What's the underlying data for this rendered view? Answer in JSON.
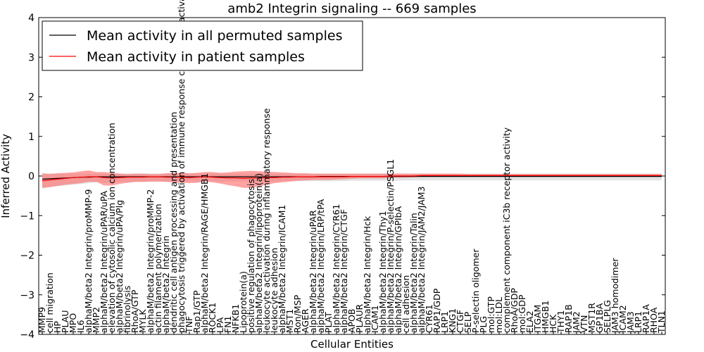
{
  "chart_data": {
    "type": "line",
    "title": "amb2 Integrin signaling -- 669 samples",
    "xlabel": "Cellular Entities",
    "ylabel": "Inferred Activity",
    "ylim": [
      -4,
      4
    ],
    "yticks": [
      -4,
      -3,
      -2,
      -1,
      0,
      1,
      2,
      3,
      4
    ],
    "ytick_labels": [
      "−4",
      "−3",
      "−2",
      "−1",
      "0",
      "1",
      "2",
      "3",
      "4"
    ],
    "grid": false,
    "legend_position": "top-left",
    "categories": [
      "MMP9",
      "cell migration",
      "HP",
      "PLAU",
      "MPO",
      "IL6",
      "alphaM/beta2 Integrin/proMMP-9",
      "MMP2",
      "alphaM/beta2 Integrin/uPAR/uPA",
      "elevation of cytosolic calcium ion concentration",
      "alphaM/beta2 Integrin/uPA/Plg",
      "fibrinolysis",
      "RhoA/GTP",
      "MYLK",
      "alphaM/beta2 Integrin/proMMP-2",
      "actin filament polymerization",
      "alphaM/beta2 Integrin",
      "dendritic cell antigen processing and presentation",
      "phagocytosis triggered by activation of immune response cell surface activating receptor",
      "TNF",
      "Rap1/GTP",
      "alphaM/beta2 Integrin/RAGE/HMGB1",
      "ROCK1",
      "LPA",
      "FN1",
      "NFKB1",
      "Lipoprotein(a)",
      "positive regulation of phagocytosis",
      "alphaM/beta2 Integrin/lipoprotein(a)",
      "leukocyte activation during inflammatory response",
      "leukocyte adhesion",
      "alphaM/beta2 Integrin/ICAM1",
      "MST1",
      "Ron/MSP",
      "AGER",
      "alphaM/beta2 Integrin/uPAR",
      "alphaM/beta2 Integrin/LRP/tPA",
      "PLAT",
      "alphaM/beta2 Integrin/CYR61",
      "alphaM/beta2 Integrin/CTGF",
      "APOB",
      "PLAUR",
      "alphaM/beta2 Integrin/Hck",
      "ICAM1",
      "alphaM/beta2 Integrin/Thy1",
      "alphaM/beta2 Integrin/P-selectin/PSGL1",
      "alphaM/beta2 Integrin/GPIbA",
      "cell adhesion",
      "alphaM/beta2 Integrin/Talin",
      "alphaM/beta2 Integrin/JAM2/JAM3",
      "CYR61",
      "RAP1/GDP",
      "LRP1",
      "KNG1",
      "CTGF",
      "SELP",
      "P-selectin oligomer",
      "PLG",
      "mol:GTP",
      "mol:LDL",
      "complement component iC3b receptor activity",
      "RhoA/GDP",
      "mol:GDP",
      "ELA2",
      "ITGAM",
      "HMGB1",
      "HCK",
      "THY1",
      "RAP1B",
      "JAM2",
      "VTN",
      "MST1R",
      "GP1BA",
      "SELPLG",
      "JAM3 homodimer",
      "ICAM2",
      "JAM3",
      "LRP1",
      "RAP1A",
      "RHOA",
      "TLN1"
    ],
    "series": [
      {
        "name": "Mean activity in all permuted samples",
        "color": "#000000",
        "values": [
          -0.08,
          -0.07,
          -0.06,
          -0.05,
          -0.04,
          -0.03,
          -0.03,
          -0.02,
          -0.02,
          -0.02,
          -0.02,
          -0.02,
          -0.02,
          -0.02,
          -0.02,
          -0.02,
          -0.02,
          -0.02,
          -0.02,
          -0.02,
          -0.02,
          -0.02,
          -0.02,
          -0.02,
          -0.02,
          -0.02,
          -0.02,
          -0.02,
          -0.02,
          -0.02,
          -0.02,
          -0.02,
          -0.02,
          -0.02,
          -0.02,
          -0.02,
          -0.01,
          -0.01,
          -0.01,
          -0.01,
          -0.01,
          -0.01,
          -0.01,
          -0.01,
          -0.01,
          -0.01,
          -0.01,
          -0.01,
          -0.01,
          -0.01,
          -0.01,
          -0.01,
          -0.01,
          -0.01,
          -0.01,
          -0.01,
          -0.01,
          -0.01,
          -0.01,
          -0.01,
          -0.01,
          -0.01,
          -0.01,
          -0.01,
          -0.01,
          -0.01,
          -0.01,
          -0.01,
          -0.01,
          -0.01,
          -0.01,
          -0.01,
          -0.01,
          -0.01,
          -0.01,
          -0.01,
          -0.01,
          -0.01,
          -0.01,
          -0.01,
          -0.01
        ],
        "lower": [
          -0.32,
          -0.28,
          -0.25,
          -0.24,
          -0.22,
          -0.2,
          -0.18,
          -0.16,
          -0.16,
          -0.16,
          -0.15,
          -0.15,
          -0.15,
          -0.15,
          -0.14,
          -0.14,
          -0.14,
          -0.14,
          -0.14,
          -0.14,
          -0.14,
          -0.14,
          -0.14,
          -0.14,
          -0.14,
          -0.14,
          -0.14,
          -0.14,
          -0.14,
          -0.14,
          -0.14,
          -0.13,
          -0.13,
          -0.13,
          -0.13,
          -0.13,
          -0.13,
          -0.13,
          -0.13,
          -0.13,
          -0.12,
          -0.12,
          -0.12,
          -0.12,
          -0.12,
          -0.12,
          -0.12,
          -0.11,
          -0.11,
          -0.11,
          -0.11,
          -0.11,
          -0.11,
          -0.11,
          -0.11,
          -0.11,
          -0.11,
          -0.11,
          -0.11,
          -0.11,
          -0.11,
          -0.11,
          -0.11,
          -0.11,
          -0.11,
          -0.11,
          -0.11,
          -0.11,
          -0.11,
          -0.11,
          -0.11,
          -0.11,
          -0.11,
          -0.11,
          -0.11,
          -0.11,
          -0.11,
          -0.11,
          -0.11,
          -0.11,
          -0.11
        ],
        "upper": [
          0.08,
          0.07,
          0.06,
          0.06,
          0.06,
          0.06,
          0.06,
          0.06,
          0.06,
          0.06,
          0.06,
          0.06,
          0.06,
          0.06,
          0.06,
          0.06,
          0.06,
          0.06,
          0.06,
          0.06,
          0.06,
          0.06,
          0.06,
          0.06,
          0.06,
          0.06,
          0.06,
          0.06,
          0.06,
          0.06,
          0.06,
          0.06,
          0.06,
          0.06,
          0.06,
          0.06,
          0.06,
          0.06,
          0.06,
          0.06,
          0.06,
          0.06,
          0.06,
          0.06,
          0.06,
          0.06,
          0.06,
          0.06,
          0.06,
          0.06,
          0.06,
          0.06,
          0.06,
          0.06,
          0.06,
          0.06,
          0.06,
          0.06,
          0.06,
          0.06,
          0.06,
          0.06,
          0.06,
          0.06,
          0.06,
          0.06,
          0.06,
          0.06,
          0.06,
          0.06,
          0.06,
          0.06,
          0.06,
          0.06,
          0.06,
          0.06,
          0.06,
          0.06,
          0.06,
          0.06,
          0.06
        ],
        "band_color": "#d9d9d9"
      },
      {
        "name": "Mean activity in patient samples",
        "color": "#ff0000",
        "values": [
          -0.12,
          -0.1,
          -0.08,
          -0.06,
          -0.04,
          -0.03,
          -0.02,
          -0.02,
          -0.04,
          -0.05,
          -0.04,
          -0.03,
          -0.03,
          -0.03,
          -0.02,
          -0.02,
          -0.03,
          -0.03,
          -0.03,
          -0.04,
          -0.03,
          -0.02,
          -0.03,
          -0.04,
          -0.05,
          -0.05,
          -0.06,
          -0.05,
          -0.05,
          -0.04,
          -0.04,
          -0.03,
          -0.03,
          -0.02,
          -0.02,
          -0.02,
          -0.02,
          -0.02,
          -0.02,
          -0.02,
          -0.01,
          -0.01,
          -0.01,
          -0.01,
          -0.01,
          0,
          0,
          0,
          0,
          0.01,
          0.01,
          0.01,
          0.01,
          0.01,
          0.01,
          0.01,
          0.01,
          0.01,
          0.01,
          0.01,
          0.01,
          0.01,
          0.01,
          0.01,
          0.01,
          0.01,
          0.01,
          0.01,
          0.01,
          0.01,
          0.01,
          0.01,
          0.01,
          0.01,
          0.01,
          0.01,
          0.01,
          0.01,
          0.01,
          0.01,
          0.01
        ],
        "lower": [
          -0.3,
          -0.28,
          -0.25,
          -0.22,
          -0.2,
          -0.18,
          -0.15,
          -0.15,
          -0.24,
          -0.24,
          -0.2,
          -0.17,
          -0.15,
          -0.15,
          -0.14,
          -0.14,
          -0.15,
          -0.16,
          -0.17,
          -0.18,
          -0.17,
          -0.14,
          -0.16,
          -0.19,
          -0.23,
          -0.26,
          -0.3,
          -0.3,
          -0.26,
          -0.22,
          -0.18,
          -0.16,
          -0.14,
          -0.12,
          -0.11,
          -0.1,
          -0.1,
          -0.1,
          -0.09,
          -0.08,
          -0.07,
          -0.06,
          -0.06,
          -0.06,
          -0.06,
          -0.05,
          -0.04,
          -0.04,
          -0.03,
          -0.02,
          -0.02,
          -0.02,
          -0.02,
          -0.02,
          -0.02,
          -0.02,
          -0.02,
          -0.02,
          -0.02,
          -0.02,
          -0.02,
          -0.02,
          -0.02,
          -0.02,
          -0.02,
          -0.02,
          -0.02,
          -0.02,
          -0.02,
          -0.02,
          -0.02,
          -0.02,
          -0.02,
          -0.02,
          -0.02,
          -0.02,
          -0.02,
          -0.02,
          -0.02,
          -0.02,
          -0.02
        ],
        "upper": [
          0.06,
          0.05,
          0.07,
          0.08,
          0.09,
          0.12,
          0.14,
          0.1,
          0.1,
          0.08,
          0.06,
          0.05,
          0.06,
          0.06,
          0.05,
          0.05,
          0.07,
          0.08,
          0.08,
          0.07,
          0.08,
          0.1,
          0.1,
          0.08,
          0.09,
          0.11,
          0.12,
          0.13,
          0.12,
          0.11,
          0.1,
          0.09,
          0.08,
          0.07,
          0.07,
          0.06,
          0.06,
          0.06,
          0.06,
          0.06,
          0.06,
          0.06,
          0.06,
          0.06,
          0.06,
          0.06,
          0.06,
          0.06,
          0.06,
          0.06,
          0.06,
          0.06,
          0.06,
          0.06,
          0.06,
          0.05,
          0.05,
          0.05,
          0.05,
          0.05,
          0.05,
          0.05,
          0.05,
          0.05,
          0.05,
          0.05,
          0.05,
          0.05,
          0.05,
          0.05,
          0.05,
          0.05,
          0.05,
          0.05,
          0.05,
          0.05,
          0.05,
          0.05,
          0.05,
          0.05,
          0.05
        ],
        "band_color": "#ff6666"
      }
    ]
  }
}
